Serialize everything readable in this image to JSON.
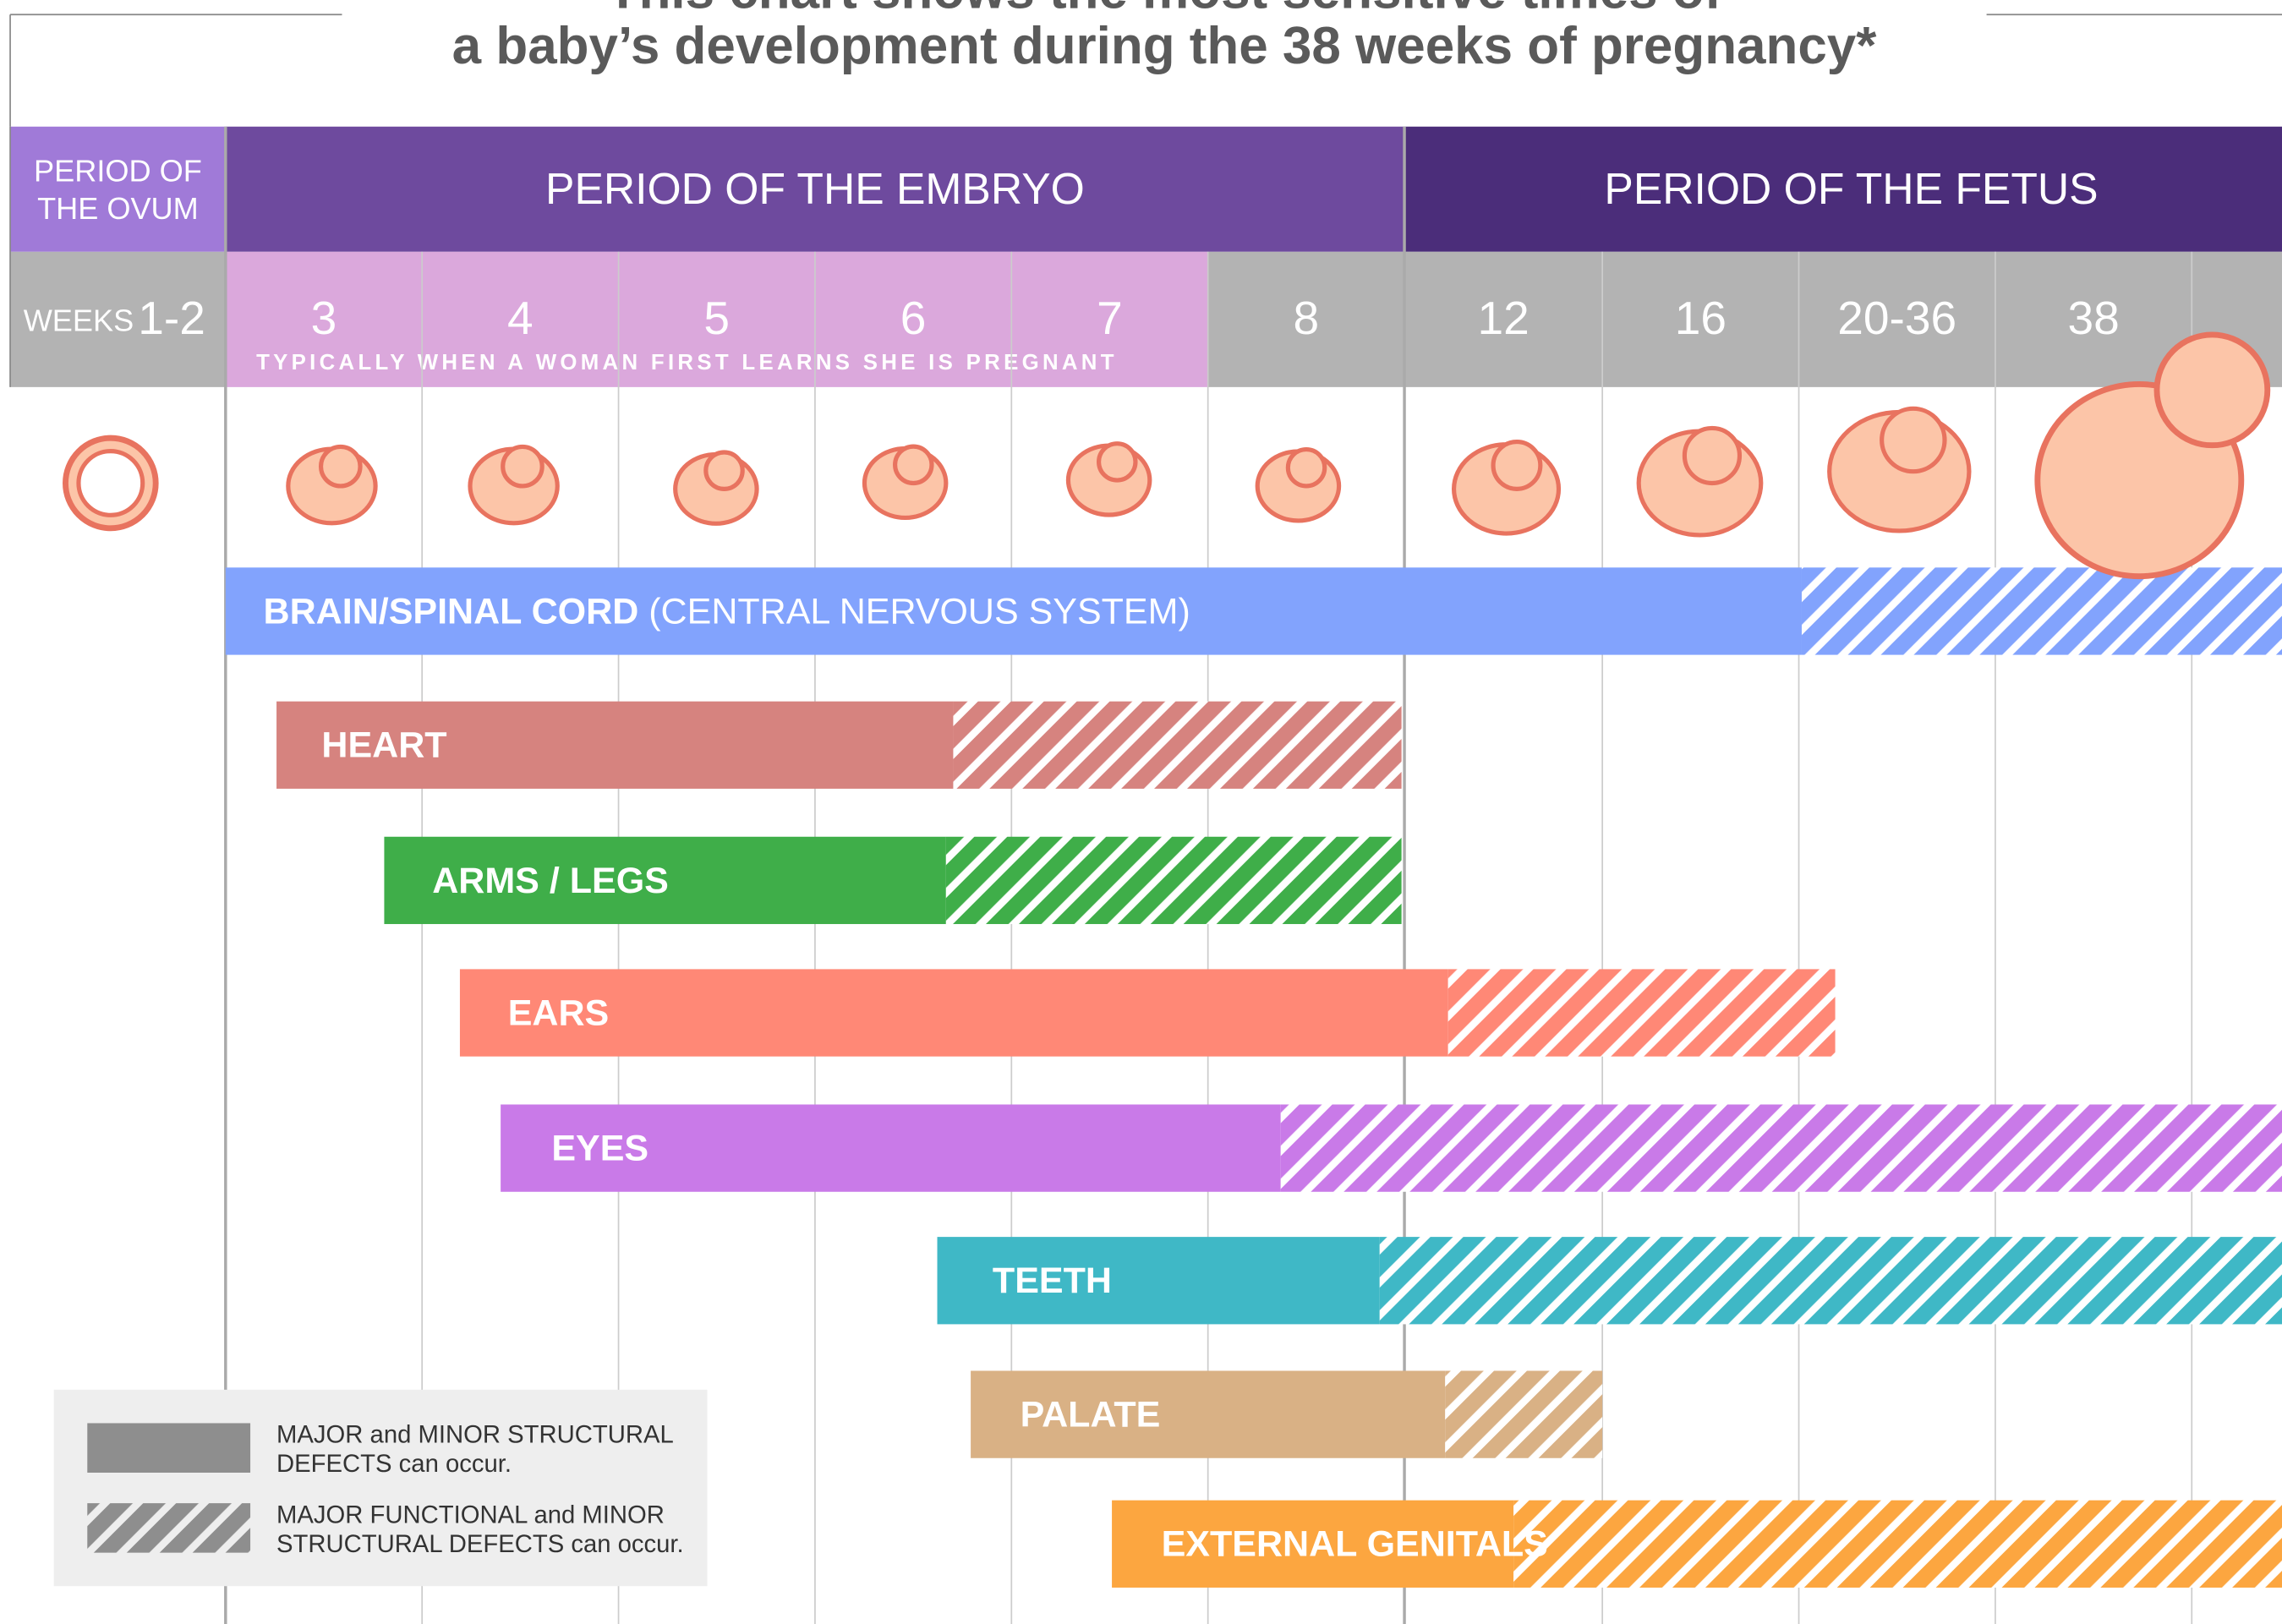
{
  "header": {
    "title_lines": [
      "This chart shows the most sensitive times of",
      "a baby’s development during the 38 weeks of pregnancy*"
    ]
  },
  "periods": {
    "ovum": [
      "PERIOD OF",
      "THE OVUM"
    ],
    "embryo": "PERIOD OF THE EMBRYO",
    "fetus": "PERIOD OF THE FETUS"
  },
  "weeks": {
    "label": "WEEKS",
    "items": [
      "1-2",
      "3",
      "4",
      "5",
      "6",
      "7",
      "8",
      "12",
      "16",
      "20-36",
      "38"
    ],
    "note": "TYPICALLY WHEN A WOMAN FIRST LEARNS SHE IS PREGNANT"
  },
  "bars": [
    {
      "name": "BRAIN/SPINAL CORD",
      "detail": "(CENTRAL NERVOUS SYSTEM)",
      "color": "#82a3fd"
    },
    {
      "name": "HEART",
      "color": "#d6837f"
    },
    {
      "name": "ARMS / LEGS",
      "color": "#3fae49"
    },
    {
      "name": "EARS",
      "color": "#ff8876"
    },
    {
      "name": "EYES",
      "color": "#c97ae8"
    },
    {
      "name": "TEETH",
      "color": "#3fb8c6"
    },
    {
      "name": "PALATE",
      "color": "#d9b185"
    },
    {
      "name": "EXTERNAL GENITALS",
      "color": "#fca640"
    }
  ],
  "legend": [
    {
      "lines": [
        "MAJOR and MINOR STRUCTURAL",
        "DEFECTS can occur."
      ]
    },
    {
      "lines": [
        "MAJOR FUNCTIONAL and MINOR",
        "STRUCTURAL DEFECTS can occur."
      ]
    }
  ]
}
